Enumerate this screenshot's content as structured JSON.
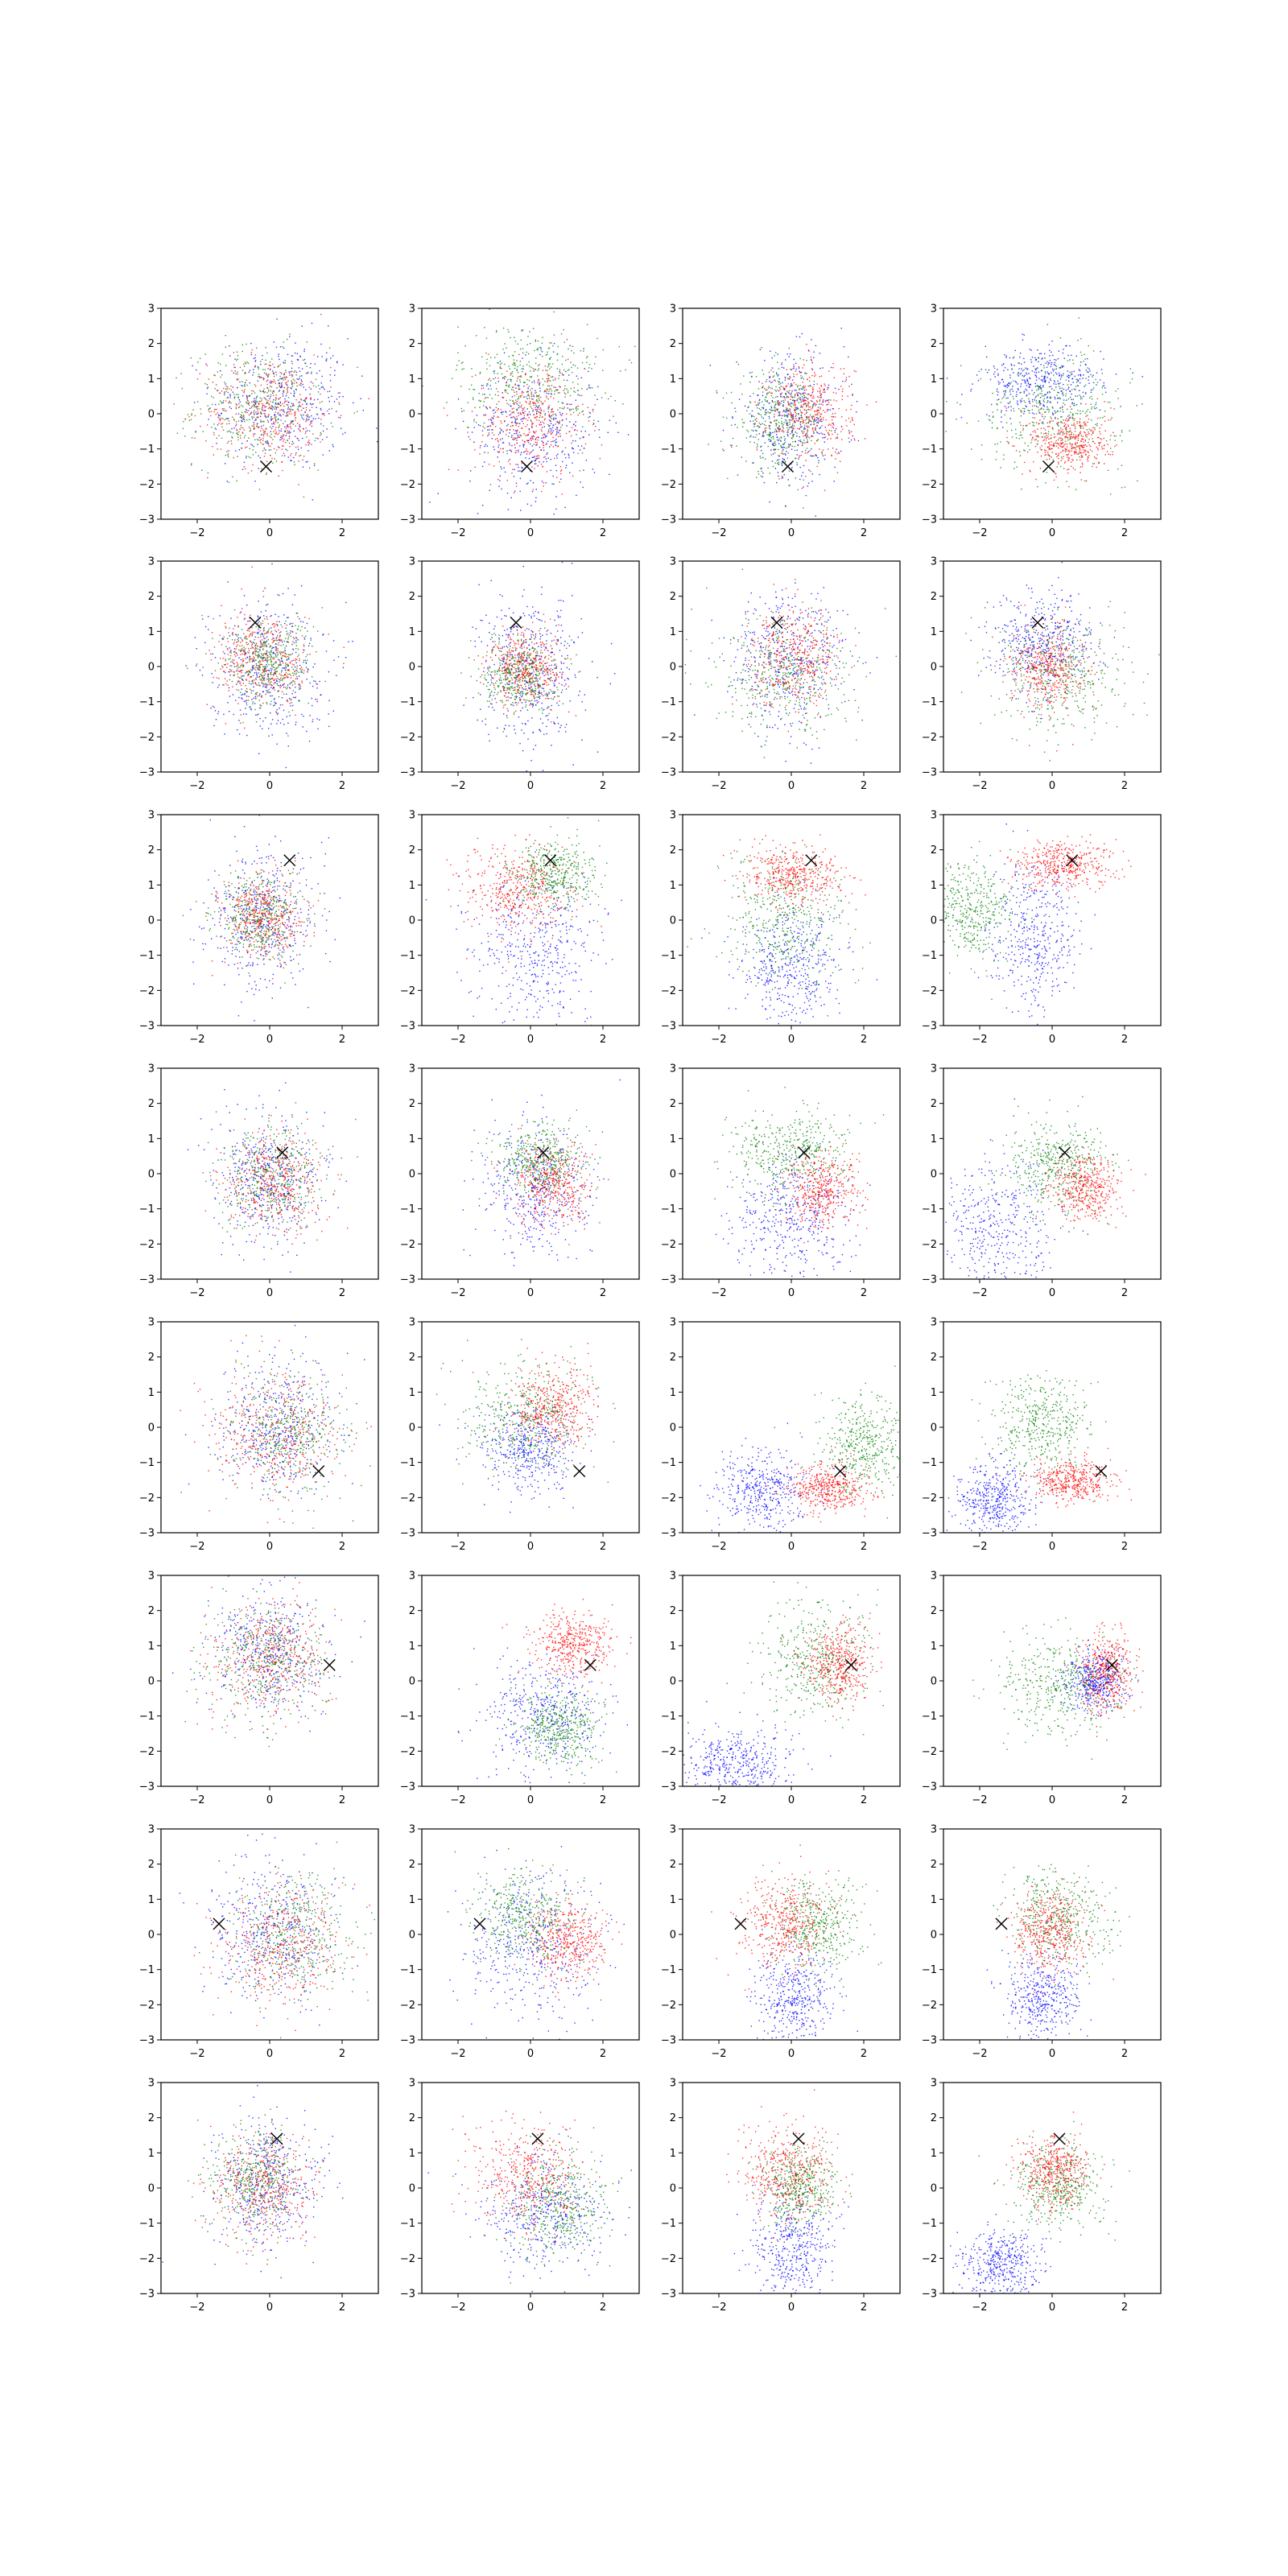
{
  "chart_data": {
    "type": "scatter",
    "layout": "8 rows x 4 columns of scatter panels",
    "xlim": [
      -3,
      3
    ],
    "ylim": [
      -3,
      3
    ],
    "xticks": [
      -2,
      0,
      2
    ],
    "yticks": [
      -3,
      -2,
      -1,
      0,
      1,
      2,
      3
    ],
    "xtick_labels": [
      "−2",
      "0",
      "2"
    ],
    "ytick_labels": [
      "−3",
      "−2",
      "−1",
      "0",
      "1",
      "2",
      "3"
    ],
    "grid": false,
    "legend": "none",
    "series_colors": {
      "blue": "#0000ff",
      "green": "#008000",
      "red": "#ff0000"
    },
    "marker_color": "#000000",
    "marker_symbol": "x",
    "row_markers": [
      {
        "x": -0.1,
        "y": -1.5
      },
      {
        "x": -0.4,
        "y": 1.25
      },
      {
        "x": 0.55,
        "y": 1.7
      },
      {
        "x": 0.35,
        "y": 0.6
      },
      {
        "x": 1.35,
        "y": -1.25
      },
      {
        "x": 1.65,
        "y": 0.45
      },
      {
        "x": -1.4,
        "y": 0.3
      },
      {
        "x": 0.2,
        "y": 1.4
      }
    ],
    "panels": [
      [
        {
          "blue": {
            "mean": [
              0.3,
              0.3
            ],
            "sd": [
              0.95,
              0.95
            ]
          },
          "green": {
            "mean": [
              -0.3,
              0.2
            ],
            "sd": [
              0.9,
              0.85
            ]
          },
          "red": {
            "mean": [
              0.0,
              0.1
            ],
            "sd": [
              0.85,
              0.8
            ]
          }
        },
        {
          "blue": {
            "mean": [
              0.1,
              -0.5
            ],
            "sd": [
              0.9,
              0.95
            ]
          },
          "green": {
            "mean": [
              0.0,
              1.0
            ],
            "sd": [
              1.0,
              0.8
            ]
          },
          "red": {
            "mean": [
              0.0,
              -0.2
            ],
            "sd": [
              0.75,
              0.8
            ]
          }
        },
        {
          "blue": {
            "mean": [
              0.0,
              -0.1
            ],
            "sd": [
              0.75,
              0.9
            ]
          },
          "green": {
            "mean": [
              -0.3,
              -0.2
            ],
            "sd": [
              0.6,
              0.7
            ]
          },
          "red": {
            "mean": [
              0.5,
              0.1
            ],
            "sd": [
              0.6,
              0.7
            ]
          }
        },
        {
          "blue": {
            "mean": [
              -0.3,
              0.9
            ],
            "sd": [
              0.85,
              0.5
            ]
          },
          "green": {
            "mean": [
              0.0,
              0.1
            ],
            "sd": [
              1.0,
              0.8
            ]
          },
          "red": {
            "mean": [
              0.5,
              -0.8
            ],
            "sd": [
              0.55,
              0.45
            ]
          }
        }
      ],
      [
        {
          "blue": {
            "mean": [
              -0.1,
              0.0
            ],
            "sd": [
              0.8,
              1.0
            ]
          },
          "green": {
            "mean": [
              -0.1,
              0.1
            ],
            "sd": [
              0.6,
              0.6
            ]
          },
          "red": {
            "mean": [
              -0.2,
              0.2
            ],
            "sd": [
              0.7,
              0.7
            ]
          }
        },
        {
          "blue": {
            "mean": [
              0.0,
              -0.1
            ],
            "sd": [
              0.7,
              1.1
            ]
          },
          "green": {
            "mean": [
              -0.3,
              -0.2
            ],
            "sd": [
              0.5,
              0.5
            ]
          },
          "red": {
            "mean": [
              -0.1,
              0.0
            ],
            "sd": [
              0.55,
              0.55
            ]
          }
        },
        {
          "blue": {
            "mean": [
              -0.1,
              0.2
            ],
            "sd": [
              0.8,
              1.0
            ]
          },
          "green": {
            "mean": [
              -0.2,
              -0.3
            ],
            "sd": [
              1.0,
              0.8
            ]
          },
          "red": {
            "mean": [
              0.1,
              0.3
            ],
            "sd": [
              0.6,
              0.7
            ]
          }
        },
        {
          "blue": {
            "mean": [
              -0.3,
              0.7
            ],
            "sd": [
              0.7,
              0.7
            ]
          },
          "green": {
            "mean": [
              0.3,
              -0.2
            ],
            "sd": [
              0.9,
              0.8
            ]
          },
          "red": {
            "mean": [
              -0.1,
              0.0
            ],
            "sd": [
              0.5,
              0.6
            ]
          }
        }
      ],
      [
        {
          "blue": {
            "mean": [
              -0.2,
              0.0
            ],
            "sd": [
              0.75,
              1.0
            ]
          },
          "green": {
            "mean": [
              -0.3,
              0.1
            ],
            "sd": [
              0.6,
              0.6
            ]
          },
          "red": {
            "mean": [
              -0.2,
              0.1
            ],
            "sd": [
              0.55,
              0.6
            ]
          }
        },
        {
          "blue": {
            "mean": [
              0.2,
              -0.8
            ],
            "sd": [
              0.85,
              1.0
            ]
          },
          "green": {
            "mean": [
              0.6,
              1.3
            ],
            "sd": [
              0.6,
              0.5
            ]
          },
          "red": {
            "mean": [
              -0.4,
              0.8
            ],
            "sd": [
              0.75,
              0.65
            ]
          }
        },
        {
          "blue": {
            "mean": [
              0.0,
              -1.4
            ],
            "sd": [
              0.7,
              0.9
            ]
          },
          "green": {
            "mean": [
              -0.2,
              0.0
            ],
            "sd": [
              0.9,
              0.9
            ]
          },
          "red": {
            "mean": [
              0.1,
              1.3
            ],
            "sd": [
              0.7,
              0.4
            ]
          }
        },
        {
          "blue": {
            "mean": [
              -0.5,
              -0.5
            ],
            "sd": [
              0.6,
              1.0
            ]
          },
          "green": {
            "mean": [
              -2.3,
              0.3
            ],
            "sd": [
              0.6,
              0.7
            ]
          },
          "red": {
            "mean": [
              0.3,
              1.6
            ],
            "sd": [
              0.7,
              0.35
            ]
          }
        }
      ],
      [
        {
          "blue": {
            "mean": [
              0.0,
              -0.1
            ],
            "sd": [
              0.75,
              0.9
            ]
          },
          "green": {
            "mean": [
              0.0,
              -0.1
            ],
            "sd": [
              0.7,
              0.7
            ]
          },
          "red": {
            "mean": [
              0.1,
              -0.2
            ],
            "sd": [
              0.7,
              0.7
            ]
          }
        },
        {
          "blue": {
            "mean": [
              0.1,
              -0.5
            ],
            "sd": [
              0.75,
              1.0
            ]
          },
          "green": {
            "mean": [
              0.2,
              0.4
            ],
            "sd": [
              0.6,
              0.5
            ]
          },
          "red": {
            "mean": [
              0.6,
              -0.3
            ],
            "sd": [
              0.55,
              0.6
            ]
          }
        },
        {
          "blue": {
            "mean": [
              0.0,
              -1.4
            ],
            "sd": [
              0.8,
              0.9
            ]
          },
          "green": {
            "mean": [
              -0.1,
              0.6
            ],
            "sd": [
              0.8,
              0.6
            ]
          },
          "red": {
            "mean": [
              0.8,
              -0.5
            ],
            "sd": [
              0.5,
              0.55
            ]
          }
        },
        {
          "blue": {
            "mean": [
              -1.5,
              -1.6
            ],
            "sd": [
              0.8,
              1.0
            ]
          },
          "green": {
            "mean": [
              0.1,
              0.3
            ],
            "sd": [
              0.7,
              0.6
            ]
          },
          "red": {
            "mean": [
              0.9,
              -0.4
            ],
            "sd": [
              0.45,
              0.45
            ]
          }
        }
      ],
      [
        {
          "blue": {
            "mean": [
              0.2,
              0.1
            ],
            "sd": [
              0.85,
              0.95
            ]
          },
          "green": {
            "mean": [
              0.5,
              -0.2
            ],
            "sd": [
              0.8,
              0.85
            ]
          },
          "red": {
            "mean": [
              0.1,
              -0.1
            ],
            "sd": [
              0.85,
              0.85
            ]
          }
        },
        {
          "blue": {
            "mean": [
              0.0,
              -0.6
            ],
            "sd": [
              0.65,
              0.6
            ]
          },
          "green": {
            "mean": [
              -0.2,
              0.3
            ],
            "sd": [
              0.85,
              0.75
            ]
          },
          "red": {
            "mean": [
              0.6,
              0.6
            ],
            "sd": [
              0.6,
              0.6
            ]
          }
        },
        {
          "blue": {
            "mean": [
              -0.8,
              -1.8
            ],
            "sd": [
              0.6,
              0.55
            ]
          },
          "green": {
            "mean": [
              2.0,
              -0.5
            ],
            "sd": [
              0.6,
              0.7
            ]
          },
          "red": {
            "mean": [
              1.0,
              -1.7
            ],
            "sd": [
              0.5,
              0.35
            ]
          }
        },
        {
          "blue": {
            "mean": [
              -1.6,
              -2.1
            ],
            "sd": [
              0.5,
              0.5
            ]
          },
          "green": {
            "mean": [
              -0.3,
              0.0
            ],
            "sd": [
              0.7,
              0.65
            ]
          },
          "red": {
            "mean": [
              0.6,
              -1.5
            ],
            "sd": [
              0.55,
              0.3
            ]
          }
        }
      ],
      [
        {
          "blue": {
            "mean": [
              0.0,
              0.8
            ],
            "sd": [
              0.8,
              0.9
            ]
          },
          "green": {
            "mean": [
              -0.1,
              0.6
            ],
            "sd": [
              0.85,
              0.85
            ]
          },
          "red": {
            "mean": [
              0.0,
              0.7
            ],
            "sd": [
              0.8,
              0.8
            ]
          }
        },
        {
          "blue": {
            "mean": [
              0.3,
              -1.0
            ],
            "sd": [
              0.85,
              0.8
            ]
          },
          "green": {
            "mean": [
              0.8,
              -1.3
            ],
            "sd": [
              0.55,
              0.55
            ]
          },
          "red": {
            "mean": [
              1.2,
              1.1
            ],
            "sd": [
              0.55,
              0.45
            ]
          }
        },
        {
          "blue": {
            "mean": [
              -1.5,
              -2.3
            ],
            "sd": [
              0.8,
              0.5
            ]
          },
          "green": {
            "mean": [
              0.6,
              0.5
            ],
            "sd": [
              0.75,
              0.8
            ]
          },
          "red": {
            "mean": [
              1.3,
              0.5
            ],
            "sd": [
              0.45,
              0.55
            ]
          }
        },
        {
          "blue": {
            "mean": [
              1.2,
              0.0
            ],
            "sd": [
              0.4,
              0.4
            ]
          },
          "green": {
            "mean": [
              0.2,
              -0.1
            ],
            "sd": [
              0.85,
              0.7
            ]
          },
          "red": {
            "mean": [
              1.5,
              0.3
            ],
            "sd": [
              0.35,
              0.55
            ]
          }
        }
      ],
      [
        {
          "blue": {
            "mean": [
              0.0,
              0.2
            ],
            "sd": [
              0.85,
              1.0
            ]
          },
          "green": {
            "mean": [
              0.7,
              0.0
            ],
            "sd": [
              0.8,
              0.85
            ]
          },
          "red": {
            "mean": [
              0.3,
              -0.2
            ],
            "sd": [
              0.85,
              0.85
            ]
          }
        },
        {
          "blue": {
            "mean": [
              0.0,
              -0.3
            ],
            "sd": [
              0.9,
              1.0
            ]
          },
          "green": {
            "mean": [
              -0.2,
              0.5
            ],
            "sd": [
              0.7,
              0.65
            ]
          },
          "red": {
            "mean": [
              1.0,
              -0.2
            ],
            "sd": [
              0.55,
              0.55
            ]
          }
        },
        {
          "blue": {
            "mean": [
              0.1,
              -1.8
            ],
            "sd": [
              0.55,
              0.65
            ]
          },
          "green": {
            "mean": [
              0.7,
              0.2
            ],
            "sd": [
              0.6,
              0.6
            ]
          },
          "red": {
            "mean": [
              -0.2,
              0.3
            ],
            "sd": [
              0.6,
              0.65
            ]
          }
        },
        {
          "blue": {
            "mean": [
              -0.3,
              -1.8
            ],
            "sd": [
              0.5,
              0.6
            ]
          },
          "green": {
            "mean": [
              0.2,
              0.5
            ],
            "sd": [
              0.75,
              0.7
            ]
          },
          "red": {
            "mean": [
              -0.1,
              0.1
            ],
            "sd": [
              0.5,
              0.6
            ]
          }
        }
      ],
      [
        {
          "blue": {
            "mean": [
              -0.1,
              0.1
            ],
            "sd": [
              0.75,
              0.9
            ]
          },
          "green": {
            "mean": [
              -0.4,
              0.2
            ],
            "sd": [
              0.65,
              0.7
            ]
          },
          "red": {
            "mean": [
              -0.2,
              0.0
            ],
            "sd": [
              0.7,
              0.8
            ]
          }
        },
        {
          "blue": {
            "mean": [
              0.4,
              -0.7
            ],
            "sd": [
              0.85,
              0.8
            ]
          },
          "green": {
            "mean": [
              0.8,
              -0.5
            ],
            "sd": [
              0.7,
              0.7
            ]
          },
          "red": {
            "mean": [
              -0.2,
              0.4
            ],
            "sd": [
              0.7,
              0.75
            ]
          }
        },
        {
          "blue": {
            "mean": [
              0.0,
              -1.7
            ],
            "sd": [
              0.55,
              0.75
            ]
          },
          "green": {
            "mean": [
              0.2,
              0.0
            ],
            "sd": [
              0.5,
              0.55
            ]
          },
          "red": {
            "mean": [
              -0.1,
              0.5
            ],
            "sd": [
              0.6,
              0.7
            ]
          }
        },
        {
          "blue": {
            "mean": [
              -1.4,
              -2.2
            ],
            "sd": [
              0.55,
              0.5
            ]
          },
          "green": {
            "mean": [
              0.2,
              0.0
            ],
            "sd": [
              0.6,
              0.6
            ]
          },
          "red": {
            "mean": [
              0.0,
              0.5
            ],
            "sd": [
              0.5,
              0.5
            ]
          }
        }
      ]
    ]
  }
}
